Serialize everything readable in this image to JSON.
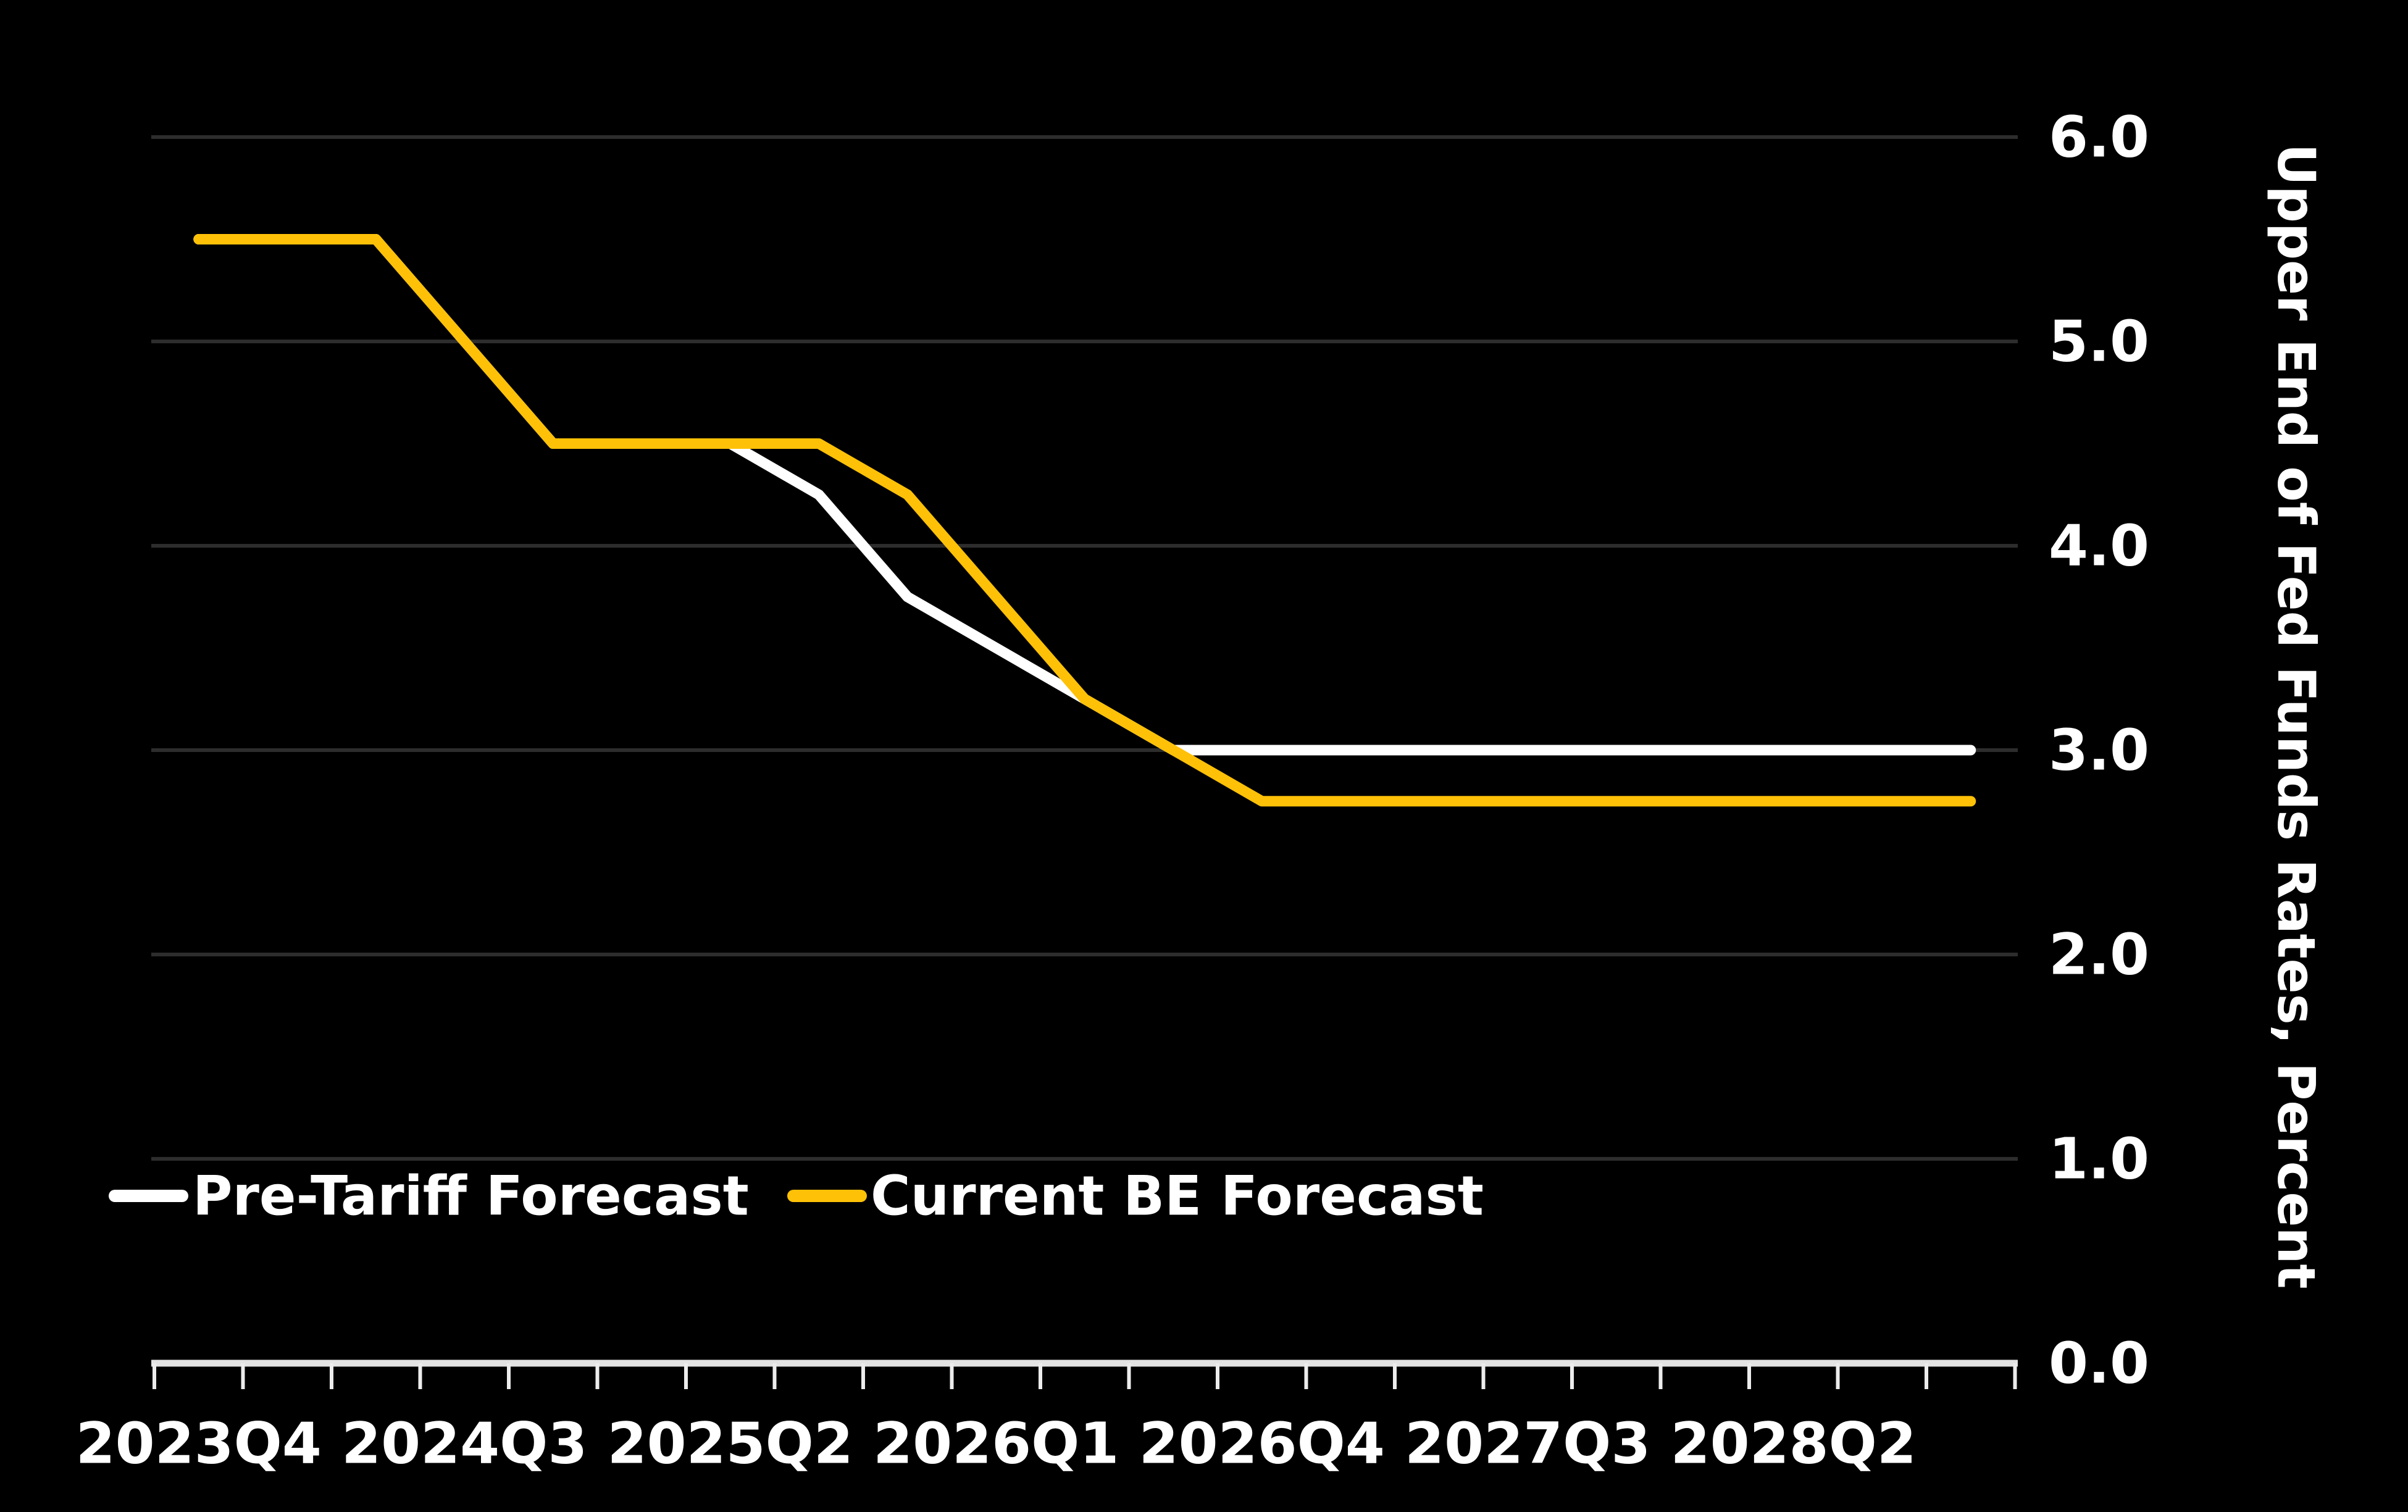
{
  "chart_data": {
    "type": "line",
    "title": "",
    "xlabel": "",
    "ylabel": "Upper End of Fed Funds Rates, Percent",
    "categories": [
      "2023Q4",
      "2024Q1",
      "2024Q2",
      "2024Q3",
      "2024Q4",
      "2025Q1",
      "2025Q2",
      "2025Q3",
      "2025Q4",
      "2026Q1",
      "2026Q2",
      "2026Q3",
      "2026Q4",
      "2027Q1",
      "2027Q2",
      "2027Q3",
      "2027Q4",
      "2028Q1",
      "2028Q2",
      "2028Q3",
      "2028Q4"
    ],
    "x_tick_labels_shown": [
      "2023Q4",
      "2024Q3",
      "2025Q2",
      "2026Q1",
      "2026Q4",
      "2027Q3",
      "2028Q2"
    ],
    "x_label_every": 3,
    "ylim": [
      0.0,
      6.0
    ],
    "ytick_values": [
      0,
      1,
      2,
      3,
      4,
      5,
      6
    ],
    "ytick_labels": [
      "0.0",
      "1.0",
      "2.0",
      "3.0",
      "4.0",
      "5.0",
      "6.0"
    ],
    "grid": "horizontal",
    "legend_position": "lower-left",
    "series": [
      {
        "name": "Pre-Tariff Forecast",
        "color": "#FFFFFF",
        "values": [
          5.5,
          5.5,
          5.5,
          5.0,
          4.5,
          4.5,
          4.5,
          4.25,
          3.75,
          3.5,
          3.25,
          3.0,
          3.0,
          3.0,
          3.0,
          3.0,
          3.0,
          3.0,
          3.0,
          3.0,
          3.0
        ]
      },
      {
        "name": "Current BE Forecast",
        "color": "#FFC107",
        "values": [
          5.5,
          5.5,
          5.5,
          5.0,
          4.5,
          4.5,
          4.5,
          4.5,
          4.25,
          3.75,
          3.25,
          3.0,
          2.75,
          2.75,
          2.75,
          2.75,
          2.75,
          2.75,
          2.75,
          2.75,
          2.75
        ]
      }
    ]
  },
  "colors": {
    "background": "#000000",
    "gridline": "#2D2D2D",
    "axis_line": "#E3E3E3",
    "tick_mark": "#ECECEC",
    "text": "#FFFFFF",
    "series_pre_tariff": "#FFFFFF",
    "series_current_be": "#FFC107"
  }
}
